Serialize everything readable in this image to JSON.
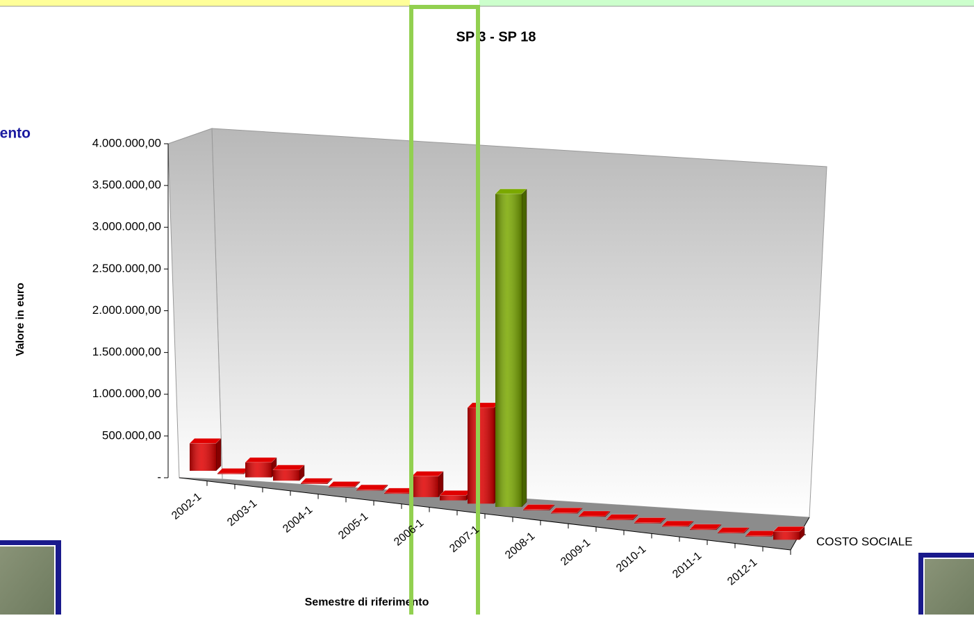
{
  "chart_data": {
    "type": "bar3d",
    "title": "SP 3 - SP 18",
    "side_text": "vento",
    "x_label": "Semestre di riferimento",
    "y_label": "Valore in euro",
    "categories": [
      "2002-1",
      null,
      "2003-1",
      null,
      "2004-1",
      null,
      "2005-1",
      null,
      "2006-1",
      null,
      "2007-1",
      null,
      "2008-1",
      null,
      "2009-1",
      null,
      "2010-1",
      null,
      "2011-1",
      null,
      "2012-1",
      null
    ],
    "series": [
      {
        "name": "COSTO SOCIALE",
        "color": "#e00000",
        "colors": [
          "#e00000",
          "#e00000",
          "#e00000",
          "#e00000",
          "#e00000",
          "#e00000",
          "#e00000",
          "#e00000",
          "#e00000",
          "#e00000",
          "#e00000",
          "#7aa800",
          "#e00000",
          "#e00000",
          "#e00000",
          "#e00000",
          "#e00000",
          "#e00000",
          "#e00000",
          "#e00000",
          "#e00000",
          "#e00000"
        ],
        "values": [
          330000,
          10000,
          180000,
          130000,
          10000,
          10000,
          10000,
          10000,
          250000,
          60000,
          1150000,
          3750000,
          10000,
          10000,
          10000,
          10000,
          10000,
          10000,
          10000,
          10000,
          10000,
          100000
        ]
      }
    ],
    "ylim": [
      0,
      4000000
    ],
    "yticks": [
      {
        "value": 0,
        "label": "-"
      },
      {
        "value": 500000,
        "label": "500.000,00"
      },
      {
        "value": 1000000,
        "label": "1.000.000,00"
      },
      {
        "value": 1500000,
        "label": "1.500.000,00"
      },
      {
        "value": 2000000,
        "label": "2.000.000,00"
      },
      {
        "value": 2500000,
        "label": "2.500.000,00"
      },
      {
        "value": 3000000,
        "label": "3.000.000,00"
      },
      {
        "value": 3500000,
        "label": "3.500.000,00"
      },
      {
        "value": 4000000,
        "label": "4.000.000,00"
      }
    ]
  }
}
